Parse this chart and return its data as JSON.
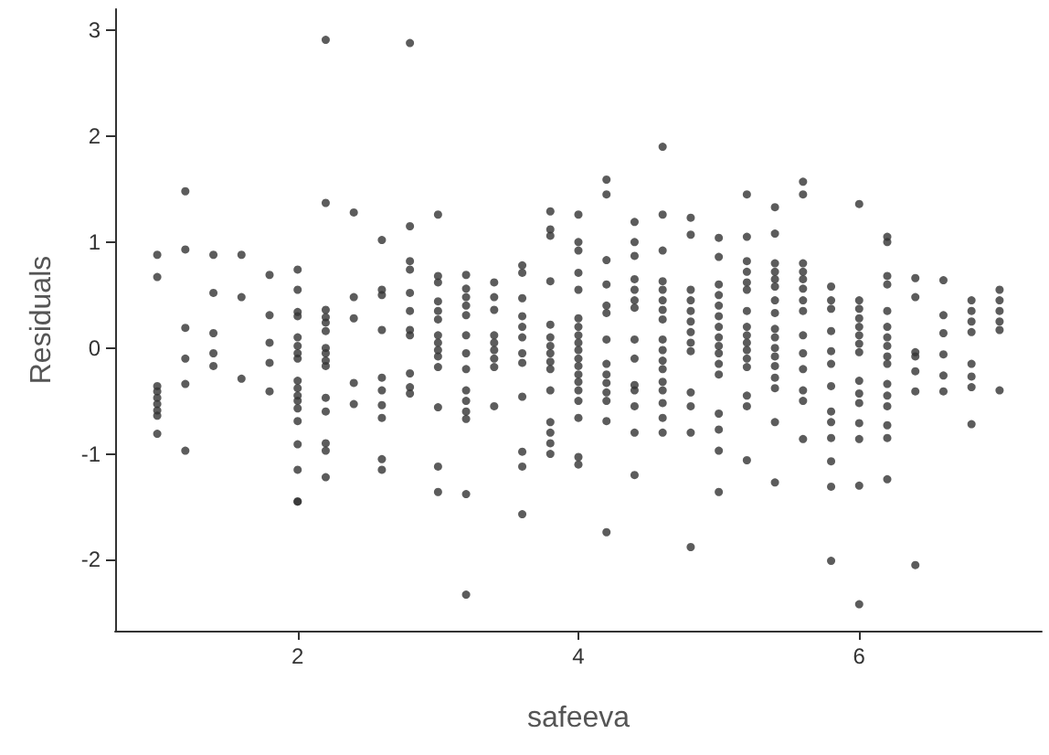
{
  "chart_data": {
    "type": "scatter",
    "xlabel": "safeeva",
    "ylabel": "Residuals",
    "color": "#333333",
    "marker": "circle",
    "xlim": [
      0.7,
      7.3
    ],
    "ylim": [
      -2.67,
      3.2
    ],
    "xticks": [
      2,
      4,
      6
    ],
    "yticks": [
      -2,
      -1,
      0,
      1,
      2,
      3
    ],
    "x": [
      1,
      1,
      1,
      1,
      1,
      1,
      1,
      1,
      1,
      1.2,
      1.2,
      1.2,
      1.2,
      1.2,
      1.2,
      1.4,
      1.4,
      1.4,
      1.4,
      1.4,
      1.6,
      1.6,
      1.6,
      1.8,
      1.8,
      1.8,
      1.8,
      1.8,
      2,
      2,
      2,
      2,
      2,
      2,
      2,
      2,
      2,
      2,
      2,
      2,
      2,
      2,
      2,
      2,
      2,
      2,
      2.2,
      2.2,
      2.2,
      2.2,
      2.2,
      2.2,
      2.2,
      2.2,
      2.2,
      2.2,
      2.2,
      2.2,
      2.2,
      2.2,
      2.2,
      2.4,
      2.4,
      2.4,
      2.4,
      2.4,
      2.6,
      2.6,
      2.6,
      2.6,
      2.6,
      2.6,
      2.6,
      2.6,
      2.6,
      2.6,
      2.8,
      2.8,
      2.8,
      2.8,
      2.8,
      2.8,
      2.8,
      2.8,
      2.8,
      2.8,
      2.8,
      3,
      3,
      3,
      3,
      3,
      3,
      3,
      3,
      3,
      3,
      3,
      3,
      3,
      3,
      3.2,
      3.2,
      3.2,
      3.2,
      3.2,
      3.2,
      3.2,
      3.2,
      3.2,
      3.2,
      3.2,
      3.2,
      3.2,
      3.2,
      3.4,
      3.4,
      3.4,
      3.4,
      3.4,
      3.4,
      3.4,
      3.4,
      3.4,
      3.6,
      3.6,
      3.6,
      3.6,
      3.6,
      3.6,
      3.6,
      3.6,
      3.6,
      3.6,
      3.6,
      3.6,
      3.8,
      3.8,
      3.8,
      3.8,
      3.8,
      3.8,
      3.8,
      3.8,
      3.8,
      3.8,
      3.8,
      3.8,
      3.8,
      3.8,
      3.8,
      4,
      4,
      4,
      4,
      4,
      4,
      4,
      4,
      4,
      4,
      4,
      4,
      4,
      4,
      4,
      4,
      4,
      4,
      4,
      4.2,
      4.2,
      4.2,
      4.2,
      4.2,
      4.2,
      4.2,
      4.2,
      4.2,
      4.2,
      4.2,
      4.2,
      4.2,
      4.2,
      4.4,
      4.4,
      4.4,
      4.4,
      4.4,
      4.4,
      4.4,
      4.4,
      4.4,
      4.4,
      4.4,
      4.4,
      4.4,
      4.4,
      4.6,
      4.6,
      4.6,
      4.6,
      4.6,
      4.6,
      4.6,
      4.6,
      4.6,
      4.6,
      4.6,
      4.6,
      4.6,
      4.6,
      4.6,
      4.6,
      4.6,
      4.8,
      4.8,
      4.8,
      4.8,
      4.8,
      4.8,
      4.8,
      4.8,
      4.8,
      4.8,
      4.8,
      4.8,
      4.8,
      5,
      5,
      5,
      5,
      5,
      5,
      5,
      5,
      5,
      5,
      5,
      5,
      5,
      5,
      5,
      5,
      5.2,
      5.2,
      5.2,
      5.2,
      5.2,
      5.2,
      5.2,
      5.2,
      5.2,
      5.2,
      5.2,
      5.2,
      5.2,
      5.2,
      5.2,
      5.2,
      5.4,
      5.4,
      5.4,
      5.4,
      5.4,
      5.4,
      5.4,
      5.4,
      5.4,
      5.4,
      5.4,
      5.4,
      5.4,
      5.4,
      5.4,
      5.4,
      5.4,
      5.6,
      5.6,
      5.6,
      5.6,
      5.6,
      5.6,
      5.6,
      5.6,
      5.6,
      5.6,
      5.6,
      5.6,
      5.6,
      5.6,
      5.8,
      5.8,
      5.8,
      5.8,
      5.8,
      5.8,
      5.8,
      5.8,
      5.8,
      5.8,
      5.8,
      5.8,
      5.8,
      6,
      6,
      6,
      6,
      6,
      6,
      6,
      6,
      6,
      6,
      6,
      6,
      6,
      6,
      6,
      6.2,
      6.2,
      6.2,
      6.2,
      6.2,
      6.2,
      6.2,
      6.2,
      6.2,
      6.2,
      6.2,
      6.2,
      6.2,
      6.2,
      6.2,
      6.2,
      6.4,
      6.4,
      6.4,
      6.4,
      6.4,
      6.4,
      6.4,
      6.6,
      6.6,
      6.6,
      6.6,
      6.6,
      6.6,
      6.8,
      6.8,
      6.8,
      6.8,
      6.8,
      6.8,
      6.8,
      6.8,
      7,
      7,
      7,
      7,
      7,
      7
    ],
    "values": [
      0.88,
      0.67,
      -0.36,
      -0.41,
      -0.47,
      -0.53,
      -0.59,
      -0.64,
      -0.81,
      1.48,
      0.93,
      0.19,
      -0.1,
      -0.34,
      -0.97,
      0.88,
      0.52,
      0.14,
      -0.05,
      -0.17,
      0.88,
      0.48,
      -0.29,
      0.69,
      0.31,
      0.05,
      -0.14,
      -0.41,
      0.74,
      0.55,
      0.34,
      0.3,
      0.1,
      0.02,
      -0.05,
      -0.1,
      -0.31,
      -0.38,
      -0.45,
      -0.5,
      -0.57,
      -0.69,
      -0.91,
      -1.15,
      -1.45,
      -1.45,
      2.91,
      1.37,
      0.36,
      0.29,
      0.24,
      0.16,
      0,
      -0.05,
      -0.12,
      -0.17,
      -0.47,
      -0.6,
      -0.9,
      -0.97,
      -1.22,
      1.28,
      0.48,
      0.28,
      -0.33,
      -0.53,
      1.02,
      0.55,
      0.5,
      0.17,
      -0.28,
      -0.4,
      -0.54,
      -0.66,
      -1.05,
      -1.15,
      2.88,
      1.15,
      0.82,
      0.74,
      0.52,
      0.35,
      0.17,
      0.12,
      -0.24,
      -0.37,
      -0.43,
      1.26,
      0.68,
      0.62,
      0.44,
      0.35,
      0.27,
      0.12,
      0.05,
      -0.02,
      -0.08,
      -0.18,
      -0.56,
      -1.12,
      -1.36,
      0.69,
      0.56,
      0.48,
      0.4,
      0.31,
      0.12,
      -0.05,
      -0.2,
      -0.4,
      -0.5,
      -0.6,
      -0.67,
      -1.38,
      -2.33,
      0.62,
      0.48,
      0.36,
      0.12,
      0.05,
      -0.02,
      -0.1,
      -0.18,
      -0.55,
      0.78,
      0.71,
      0.47,
      0.3,
      0.2,
      0.1,
      -0.05,
      -0.14,
      -0.46,
      -0.98,
      -1.12,
      -1.57,
      1.29,
      1.12,
      1.06,
      0.63,
      0.22,
      0.1,
      0.02,
      -0.05,
      -0.13,
      -0.2,
      -0.4,
      -0.7,
      -0.8,
      -0.9,
      -1,
      1.26,
      1,
      0.92,
      0.71,
      0.55,
      0.28,
      0.2,
      0.12,
      0.05,
      -0.02,
      -0.1,
      -0.17,
      -0.25,
      -0.32,
      -0.4,
      -0.5,
      -0.66,
      -1.03,
      -1.1,
      1.59,
      1.45,
      0.83,
      0.6,
      0.4,
      0.33,
      0.08,
      -0.15,
      -0.25,
      -0.33,
      -0.42,
      -0.5,
      -0.69,
      -1.74,
      1.19,
      1,
      0.87,
      0.65,
      0.55,
      0.45,
      0.38,
      0.08,
      -0.1,
      -0.35,
      -0.4,
      -0.55,
      -0.8,
      -1.2,
      1.9,
      1.26,
      0.92,
      0.63,
      0.55,
      0.45,
      0.36,
      0.27,
      0.08,
      -0.02,
      -0.12,
      -0.2,
      -0.32,
      -0.4,
      -0.52,
      -0.66,
      -0.8,
      1.23,
      1.07,
      0.55,
      0.45,
      0.35,
      0.25,
      0.15,
      0.05,
      -0.03,
      -0.42,
      -0.55,
      -0.8,
      -1.88,
      1.04,
      0.86,
      0.6,
      0.5,
      0.4,
      0.3,
      0.2,
      0.1,
      0.02,
      -0.05,
      -0.15,
      -0.25,
      -0.62,
      -0.77,
      -0.97,
      -1.36,
      1.45,
      1.05,
      0.82,
      0.72,
      0.62,
      0.55,
      0.35,
      0.2,
      0.12,
      0.05,
      -0.02,
      -0.1,
      -0.18,
      -0.45,
      -0.55,
      -1.06,
      1.33,
      1.08,
      0.8,
      0.72,
      0.65,
      0.58,
      0.45,
      0.33,
      0.18,
      0.1,
      0,
      -0.08,
      -0.17,
      -0.28,
      -0.38,
      -0.7,
      -1.27,
      1.57,
      1.45,
      0.8,
      0.72,
      0.65,
      0.56,
      0.45,
      0.35,
      0.12,
      -0.05,
      -0.2,
      -0.4,
      -0.5,
      -0.86,
      0.58,
      0.45,
      0.37,
      0.16,
      -0.03,
      -0.15,
      -0.36,
      -0.6,
      -0.7,
      -0.85,
      -1.07,
      -1.31,
      -2.01,
      1.36,
      0.45,
      0.37,
      0.28,
      0.2,
      0.12,
      0.04,
      -0.04,
      -0.31,
      -0.43,
      -0.52,
      -0.71,
      -0.86,
      -1.3,
      -2.42,
      1.05,
      1,
      0.68,
      0.6,
      0.35,
      0.2,
      0.1,
      0.02,
      -0.08,
      -0.15,
      -0.34,
      -0.45,
      -0.55,
      -0.73,
      -0.85,
      -1.24,
      0.66,
      0.48,
      -0.04,
      -0.08,
      -0.22,
      -0.41,
      -2.05,
      0.64,
      0.31,
      0.14,
      -0.06,
      -0.26,
      -0.41,
      0.45,
      0.35,
      0.25,
      0.15,
      -0.15,
      -0.27,
      -0.37,
      -0.72,
      0.55,
      0.45,
      0.35,
      0.25,
      0.17,
      -0.4
    ]
  }
}
